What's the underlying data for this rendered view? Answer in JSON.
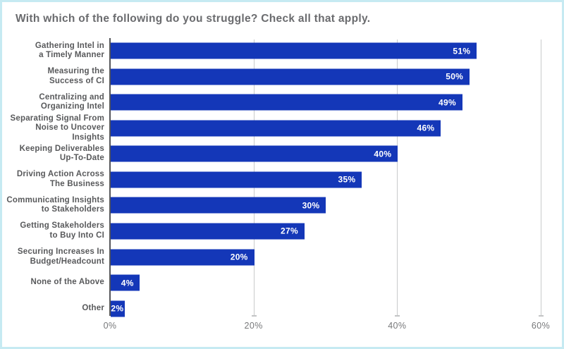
{
  "title": "With which of the following do you struggle? Check all that apply.",
  "colors": {
    "frame_border": "#c6eaf2",
    "background": "#ffffff",
    "bar": "#1437b8",
    "value_label": "#ffffff",
    "title_text": "#6a6b6e",
    "category_text": "#58595b",
    "tick_text": "#77787a",
    "gridline": "#c9cacb",
    "axis_line": "#55565a"
  },
  "chart_data": {
    "type": "bar",
    "orientation": "horizontal",
    "title": "With which of the following do you struggle? Check all that apply.",
    "categories": [
      "Gathering Intel in\na Timely Manner",
      "Measuring the\nSuccess of CI",
      "Centralizing and\nOrganizing Intel",
      "Separating Signal From\nNoise to Uncover Insights",
      "Keeping Deliverables\nUp-To-Date",
      "Driving Action Across\nThe Business",
      "Communicating Insights\nto Stakeholders",
      "Getting Stakeholders\nto Buy Into CI",
      "Securing Increases In\nBudget/Headcount",
      "None of the Above",
      "Other"
    ],
    "values": [
      51,
      50,
      49,
      46,
      40,
      35,
      30,
      27,
      20,
      4,
      2
    ],
    "value_labels": [
      "51%",
      "50%",
      "49%",
      "46%",
      "40%",
      "35%",
      "30%",
      "27%",
      "20%",
      "4%",
      "2%"
    ],
    "xlabel": "",
    "ylabel": "",
    "xlim": [
      0,
      60
    ],
    "x_ticks": [
      0,
      20,
      40,
      60
    ],
    "x_tick_labels": [
      "0%",
      "20%",
      "40%",
      "60%"
    ],
    "grid": "vertical-gridlines-at-20-40-60",
    "legend": "none",
    "bar_color": "#1437b8",
    "value_labels_inside_bars": true
  }
}
